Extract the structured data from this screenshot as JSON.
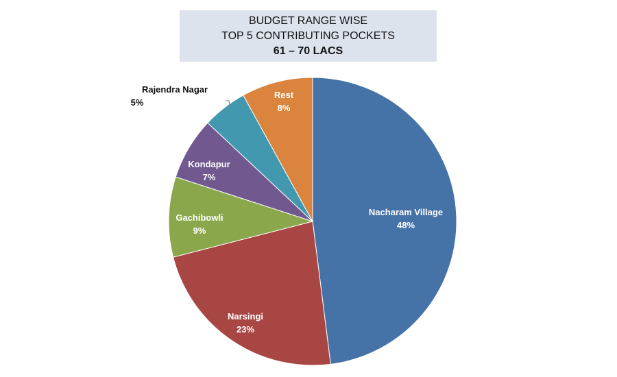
{
  "title": {
    "line1": "BUDGET RANGE WISE",
    "line2": "TOP 5 CONTRIBUTING POCKETS",
    "line3": "61 – 70 LACS"
  },
  "chart_data": {
    "type": "pie",
    "title": "BUDGET RANGE WISE TOP 5 CONTRIBUTING POCKETS 61 – 70 LACS",
    "start_angle_deg": 0,
    "direction": "clockwise",
    "slices": [
      {
        "label": "Nacharam Village",
        "value": 48,
        "display": "48%",
        "color": "#4572a7"
      },
      {
        "label": "Narsingi",
        "value": 23,
        "display": "23%",
        "color": "#a84644"
      },
      {
        "label": "Gachibowli",
        "value": 9,
        "display": "9%",
        "color": "#8aa84b"
      },
      {
        "label": "Kondapur",
        "value": 7,
        "display": "7%",
        "color": "#71588f"
      },
      {
        "label": "Rajendra Nagar",
        "value": 5,
        "display": "5%",
        "color": "#4198af"
      },
      {
        "label": "Rest",
        "value": 8,
        "display": "8%",
        "color": "#db843d"
      }
    ]
  }
}
